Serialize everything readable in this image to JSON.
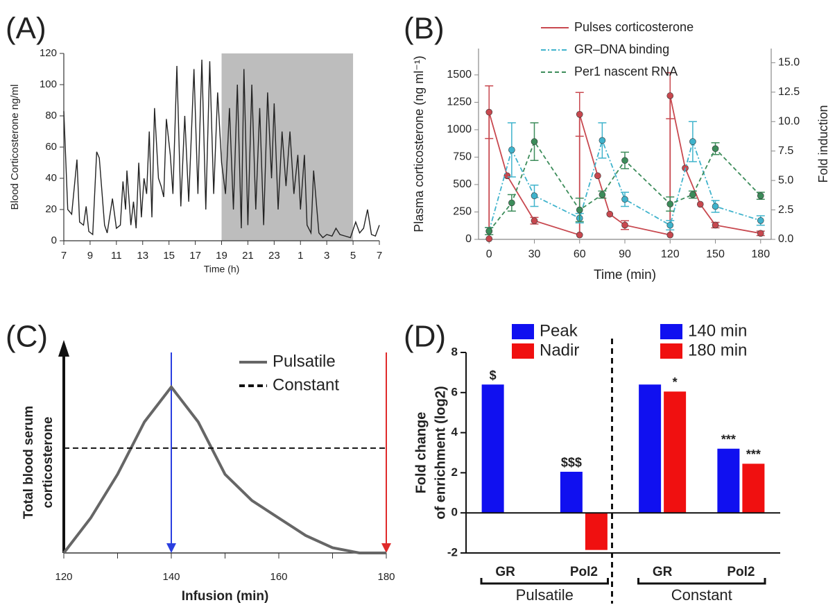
{
  "chart_data": [
    {
      "type": "line",
      "panel_label": "(A)",
      "xlabel": "Time (h)",
      "ylabel": "Blood Corticosterone ng/ml",
      "xlim": [
        7,
        31
      ],
      "ylim": [
        0,
        120
      ],
      "xticks": [
        7,
        9,
        11,
        13,
        15,
        17,
        19,
        21,
        23,
        {
          "value": 25,
          "label": "1"
        },
        {
          "value": 27,
          "label": "3"
        },
        {
          "value": 29,
          "label": "5"
        },
        {
          "value": 31,
          "label": "7"
        }
      ],
      "yticks": [
        0,
        20,
        40,
        60,
        80,
        100,
        120
      ],
      "shade": [
        19,
        29
      ],
      "shade_color": "#bdbdbd",
      "series": [
        {
          "color": "#222222",
          "x": [
            7.0,
            7.3,
            7.6,
            8.0,
            8.2,
            8.5,
            8.7,
            8.9,
            9.2,
            9.5,
            9.7,
            10.1,
            10.3,
            10.7,
            11.0,
            11.3,
            11.5,
            11.7,
            11.8,
            12.1,
            12.3,
            12.5,
            12.7,
            12.9,
            13.1,
            13.3,
            13.5,
            13.7,
            13.9,
            14.2,
            14.4,
            14.6,
            14.8,
            15.1,
            15.3,
            15.6,
            15.9,
            16.2,
            16.5,
            16.9,
            17.2,
            17.5,
            17.8,
            18.1,
            18.4,
            18.7,
            19.0,
            19.3,
            19.6,
            19.9,
            20.2,
            20.5,
            20.7,
            21.0,
            21.3,
            21.6,
            21.9,
            22.2,
            22.5,
            22.8,
            23.0,
            23.3,
            23.6,
            23.9,
            24.2,
            24.5,
            24.8,
            25.0,
            25.3,
            25.5,
            25.8,
            26.0,
            26.2,
            26.4,
            26.7,
            27.0,
            27.4,
            27.7,
            28.0,
            28.4,
            28.8,
            29.2,
            29.5,
            29.8,
            30.1,
            30.4,
            30.7,
            31.0
          ],
          "values": [
            83,
            20,
            17,
            52,
            12,
            10,
            22,
            6,
            4,
            57,
            53,
            10,
            5,
            27,
            8,
            10,
            38,
            20,
            45,
            10,
            25,
            8,
            50,
            15,
            40,
            30,
            70,
            15,
            85,
            40,
            35,
            28,
            78,
            55,
            30,
            112,
            22,
            80,
            25,
            110,
            30,
            116,
            20,
            115,
            30,
            95,
            50,
            30,
            85,
            20,
            100,
            8,
            110,
            10,
            100,
            20,
            85,
            10,
            95,
            40,
            88,
            20,
            70,
            35,
            70,
            30,
            55,
            20,
            55,
            10,
            5,
            45,
            25,
            5,
            2,
            4,
            3,
            8,
            4,
            3,
            2,
            12,
            5,
            8,
            20,
            4,
            3,
            10
          ]
        }
      ]
    },
    {
      "type": "line",
      "panel_label": "(B)",
      "xlabel": "Time (min)",
      "ylabel": "Plasma corticosterone (ng ml⁻¹)",
      "y2label": "Fold induction",
      "xlim": [
        -7,
        187
      ],
      "ylim": [
        0,
        1740
      ],
      "y2lim": [
        0,
        16.2
      ],
      "xticks": [
        0,
        30,
        60,
        90,
        120,
        150,
        180
      ],
      "yticks": [
        0,
        250,
        500,
        750,
        1000,
        1250,
        1500
      ],
      "y2ticks": [
        {
          "value": 0,
          "label": "0.0"
        },
        2.5,
        {
          "value": 5,
          "label": "5.0"
        },
        7.5,
        {
          "value": 10,
          "label": "10.0"
        },
        12.5,
        {
          "value": 15,
          "label": "15.0"
        }
      ],
      "series": [
        {
          "name": "Pulses corticosterone",
          "color": "#c8484f",
          "dash": "none",
          "x": [
            0,
            0,
            12,
            30,
            60,
            60,
            72,
            80,
            90,
            120,
            120,
            130,
            140,
            150,
            180
          ],
          "values": [
            5,
            1160,
            580,
            170,
            40,
            1140,
            580,
            230,
            130,
            40,
            1310,
            650,
            320,
            130,
            55
          ],
          "errors": [
            null,
            240,
            null,
            30,
            null,
            200,
            null,
            null,
            40,
            null,
            210,
            null,
            null,
            25,
            20
          ]
        },
        {
          "name": "GR–DNA binding",
          "color": "#3fb3cc",
          "dash": "7 3 2 3",
          "axis": "y2",
          "x": [
            0,
            15,
            30,
            60,
            75,
            90,
            120,
            135,
            150,
            180
          ],
          "values": [
            0.7,
            7.6,
            3.7,
            1.8,
            8.4,
            3.4,
            1.2,
            8.3,
            2.8,
            1.6
          ],
          "errors": [
            0.3,
            2.3,
            0.9,
            0.4,
            1.5,
            0.6,
            0.4,
            1.7,
            0.5,
            0.4
          ]
        },
        {
          "name": "Per1 nascent RNA",
          "color": "#3c8c5a",
          "dash": "6 4",
          "axis": "y2",
          "x": [
            0,
            15,
            30,
            60,
            75,
            90,
            120,
            135,
            150,
            180
          ],
          "values": [
            0.7,
            3.1,
            8.3,
            2.5,
            3.8,
            6.7,
            3.0,
            3.8,
            7.7,
            3.7
          ],
          "errors": [
            0.3,
            0.7,
            1.6,
            1.0,
            0.3,
            0.7,
            0.6,
            0.3,
            0.5,
            0.3
          ]
        }
      ]
    },
    {
      "type": "line",
      "panel_label": "(C)",
      "xlabel": "Infusion (min)",
      "ylabel": [
        "Total blood serum",
        "corticosterone"
      ],
      "xlim": [
        120,
        180
      ],
      "ylim": [
        0,
        1.1
      ],
      "xticks": [
        120,
        140,
        160,
        180
      ],
      "xminorticks": [
        130,
        150,
        170
      ],
      "vlines": [
        {
          "x": 140,
          "color": "#2a3fe0"
        },
        {
          "x": 180,
          "color": "#e02a2a"
        }
      ],
      "series": [
        {
          "name": "Pulsatile",
          "color": "#666666",
          "dash": "none",
          "x": [
            120,
            125,
            130,
            135,
            140,
            145,
            150,
            155,
            160,
            165,
            170,
            175,
            180
          ],
          "values": [
            0,
            0.2,
            0.45,
            0.75,
            0.95,
            0.75,
            0.45,
            0.3,
            0.2,
            0.1,
            0.03,
            0,
            0
          ]
        },
        {
          "name": "Constant",
          "color": "#111111",
          "dash": "8 5",
          "x": [
            120,
            180
          ],
          "values": [
            0.6,
            0.6
          ]
        }
      ]
    },
    {
      "type": "bar",
      "panel_label": "(D)",
      "ylabel": [
        "Fold change",
        "of enrichment (log2)"
      ],
      "ylim": [
        -2,
        8
      ],
      "yticks": [
        -2,
        0,
        2,
        4,
        6,
        8
      ],
      "categories": [
        "GR",
        "Pol2",
        "GR",
        "Pol2"
      ],
      "groups": [
        "Pulsatile",
        "Constant"
      ],
      "series": [
        {
          "name": "Peak",
          "color": "#1010f0",
          "values": [
            6.4,
            2.05,
            null,
            null
          ],
          "annotations": [
            "$",
            "$$$",
            null,
            null
          ]
        },
        {
          "name": "Nadir",
          "color": "#f01010",
          "values": [
            null,
            -1.85,
            null,
            null
          ],
          "annotations": [
            null,
            null,
            null,
            null
          ]
        },
        {
          "name": "140 min",
          "color": "#1010f0",
          "values": [
            null,
            null,
            6.4,
            3.2
          ],
          "annotations": [
            null,
            null,
            null,
            "***"
          ]
        },
        {
          "name": "180 min",
          "color": "#f01010",
          "values": [
            null,
            null,
            6.05,
            2.45
          ],
          "annotations": [
            null,
            null,
            "*",
            "***"
          ]
        }
      ]
    }
  ]
}
